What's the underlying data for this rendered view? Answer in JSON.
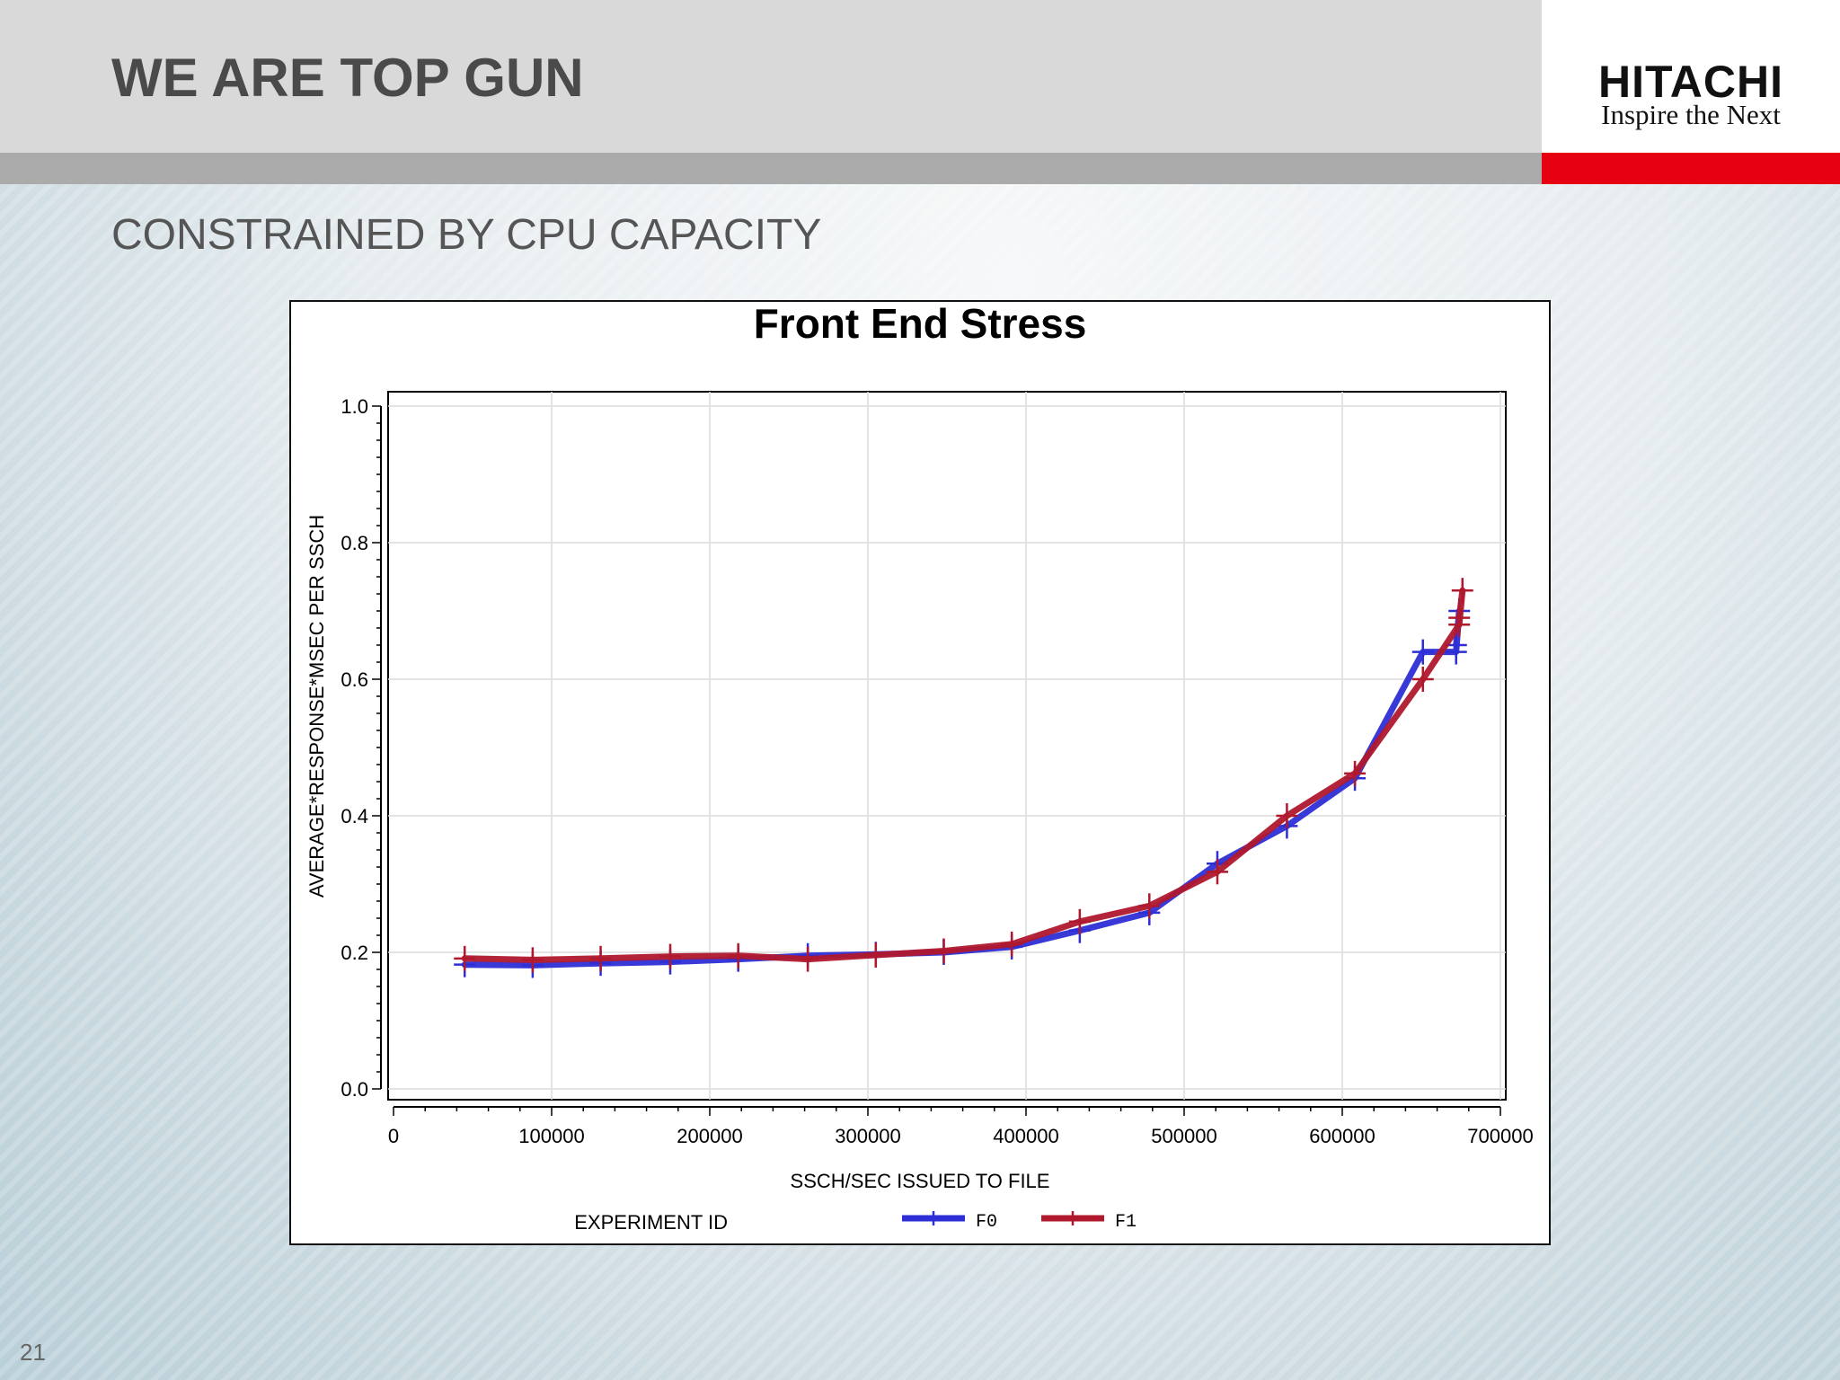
{
  "slide": {
    "title": "WE ARE TOP GUN",
    "subtitle": "CONSTRAINED BY CPU CAPACITY",
    "page_number": "21"
  },
  "logo": {
    "brand": "HITACHI",
    "tagline": "Inspire the Next",
    "accent_color": "#e60012"
  },
  "chart_data": {
    "type": "line",
    "title": "Front End Stress",
    "xlabel": "SSCH/SEC ISSUED TO FILE",
    "ylabel": "AVERAGE*RESPONSE*MSEC PER SSCH",
    "xlim": [
      0,
      700000
    ],
    "ylim": [
      0.0,
      1.0
    ],
    "x_ticks": [
      0,
      100000,
      200000,
      300000,
      400000,
      500000,
      600000,
      700000
    ],
    "x_tick_labels": [
      "0",
      "100000",
      "200000",
      "300000",
      "400000",
      "500000",
      "600000",
      "700000"
    ],
    "y_ticks": [
      0.0,
      0.2,
      0.4,
      0.6,
      0.8,
      1.0
    ],
    "y_tick_labels": [
      "0.0",
      "0.2",
      "0.4",
      "0.6",
      "0.8",
      "1.0"
    ],
    "grid": true,
    "legend_title": "EXPERIMENT ID",
    "legend_position": "bottom",
    "series": [
      {
        "name": "F0",
        "color": "#2e2ed6",
        "x": [
          45000,
          88000,
          131000,
          175000,
          218000,
          262000,
          305000,
          348000,
          391000,
          434000,
          478000,
          521000,
          565000,
          608000,
          651000,
          672000,
          674000,
          672000
        ],
        "y": [
          0.182,
          0.181,
          0.184,
          0.186,
          0.19,
          0.195,
          0.197,
          0.2,
          0.208,
          0.232,
          0.258,
          0.33,
          0.385,
          0.455,
          0.64,
          0.64,
          0.7,
          0.65
        ]
      },
      {
        "name": "F1",
        "color": "#b0182e",
        "x": [
          45000,
          88000,
          131000,
          175000,
          218000,
          262000,
          305000,
          348000,
          391000,
          434000,
          478000,
          521000,
          565000,
          608000,
          651000,
          674000,
          676000,
          674000
        ],
        "y": [
          0.191,
          0.189,
          0.191,
          0.194,
          0.195,
          0.19,
          0.196,
          0.202,
          0.212,
          0.245,
          0.268,
          0.318,
          0.4,
          0.462,
          0.6,
          0.68,
          0.73,
          0.69
        ]
      }
    ]
  }
}
